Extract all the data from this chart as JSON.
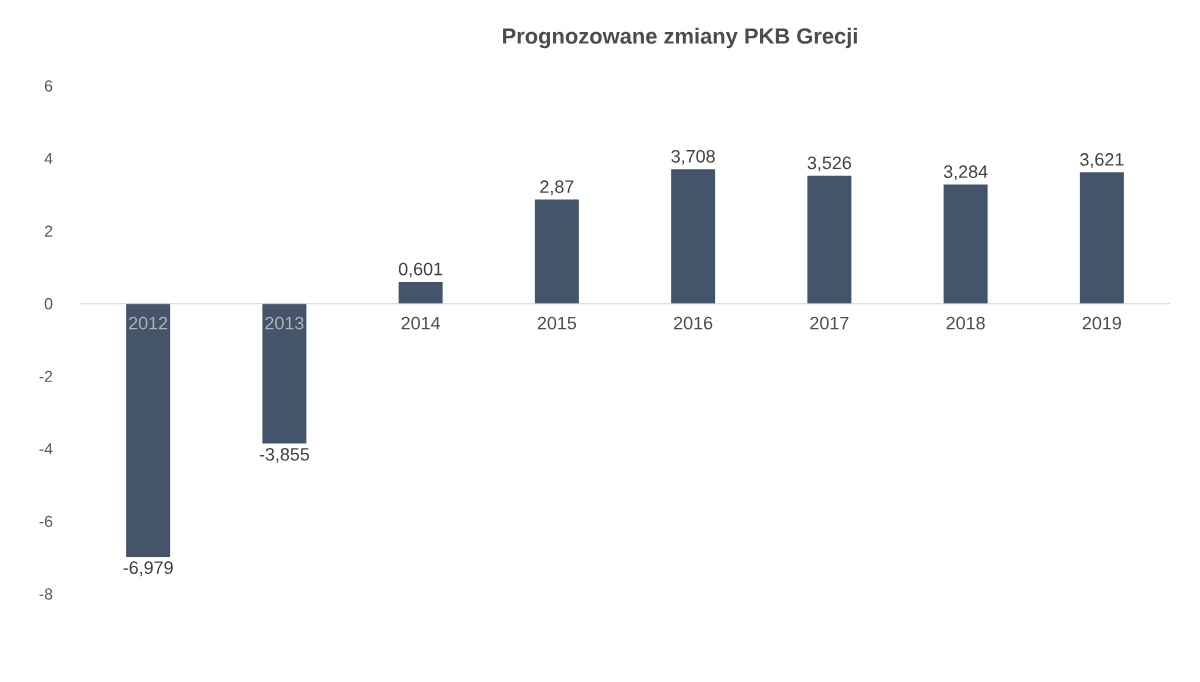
{
  "chart_data": {
    "type": "bar",
    "title": "Prognozowane zmiany PKB Grecji",
    "categories": [
      "2012",
      "2013",
      "2014",
      "2015",
      "2016",
      "2017",
      "2018",
      "2019"
    ],
    "values": [
      -6.979,
      -3.855,
      0.601,
      2.87,
      3.708,
      3.526,
      3.284,
      3.621
    ],
    "value_labels": [
      "-6,979",
      "-3,855",
      "0,601",
      "2,87",
      "3,708",
      "3,526",
      "3,284",
      "3,621"
    ],
    "color": "#44546a",
    "ylim": [
      -8,
      6
    ],
    "yticks": [
      -8,
      -6,
      -4,
      -2,
      0,
      2,
      4,
      6
    ]
  }
}
